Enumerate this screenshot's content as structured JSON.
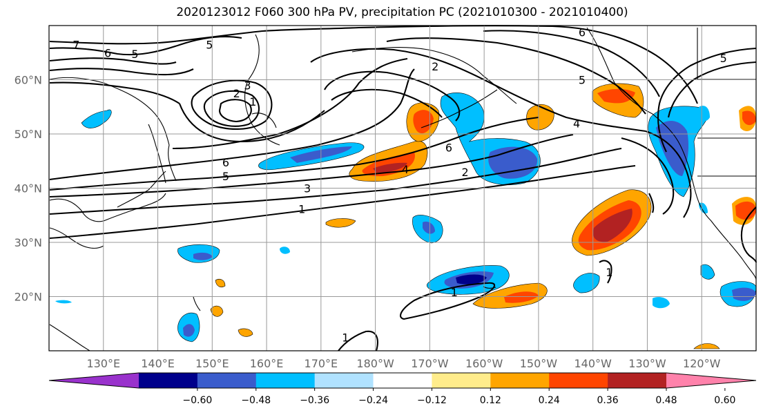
{
  "title": "2020123012 F060 300 hPa PV, precipitation PC (2021010300 - 2021010400)",
  "chart_data": {
    "type": "map",
    "projection": "cylindrical",
    "lon_range": [
      120,
      250
    ],
    "lat_range": [
      10,
      70
    ],
    "lat_ticks": [
      {
        "value": 20,
        "label": "20°N"
      },
      {
        "value": 30,
        "label": "30°N"
      },
      {
        "value": 40,
        "label": "40°N"
      },
      {
        "value": 50,
        "label": "50°N"
      },
      {
        "value": 60,
        "label": "60°N"
      }
    ],
    "lon_ticks": [
      {
        "value": 130,
        "label": "130°E"
      },
      {
        "value": 140,
        "label": "140°E"
      },
      {
        "value": 150,
        "label": "150°E"
      },
      {
        "value": 160,
        "label": "160°E"
      },
      {
        "value": 170,
        "label": "170°E"
      },
      {
        "value": 180,
        "label": "180°W"
      },
      {
        "value": 190,
        "label": "170°W"
      },
      {
        "value": 200,
        "label": "160°W"
      },
      {
        "value": 210,
        "label": "150°W"
      },
      {
        "value": 220,
        "label": "140°W"
      },
      {
        "value": 230,
        "label": "130°W"
      },
      {
        "value": 240,
        "label": "120°W"
      }
    ],
    "contour_labels": [
      {
        "text": "7",
        "lon": 125,
        "lat": 66.5
      },
      {
        "text": "6",
        "lon": 130.8,
        "lat": 65
      },
      {
        "text": "5",
        "lon": 135.8,
        "lat": 64.8
      },
      {
        "text": "5",
        "lon": 149.5,
        "lat": 66.5
      },
      {
        "text": "3",
        "lon": 156.5,
        "lat": 59
      },
      {
        "text": "2",
        "lon": 154.5,
        "lat": 57.5
      },
      {
        "text": "1",
        "lon": 157.5,
        "lat": 56
      },
      {
        "text": "6",
        "lon": 152.5,
        "lat": 44.8
      },
      {
        "text": "5",
        "lon": 152.5,
        "lat": 42.2
      },
      {
        "text": "3",
        "lon": 167.5,
        "lat": 40
      },
      {
        "text": "1",
        "lon": 166.5,
        "lat": 36.2
      },
      {
        "text": "4",
        "lon": 185.5,
        "lat": 43.5
      },
      {
        "text": "6",
        "lon": 193.5,
        "lat": 47.5
      },
      {
        "text": "2",
        "lon": 196.5,
        "lat": 43
      },
      {
        "text": "2",
        "lon": 191,
        "lat": 62.5
      },
      {
        "text": "6",
        "lon": 218,
        "lat": 68.8
      },
      {
        "text": "5",
        "lon": 218,
        "lat": 60
      },
      {
        "text": "4",
        "lon": 217,
        "lat": 52
      },
      {
        "text": "5",
        "lon": 244,
        "lat": 64
      },
      {
        "text": "1",
        "lon": 194.5,
        "lat": 20.8
      },
      {
        "text": "1",
        "lon": 223,
        "lat": 24.5
      },
      {
        "text": "1",
        "lon": 174.5,
        "lat": 12.5
      }
    ],
    "colorbar": {
      "ticks": [
        "−0.60",
        "−0.48",
        "−0.36",
        "−0.24",
        "−0.12",
        "0.12",
        "0.24",
        "0.36",
        "0.48",
        "0.60"
      ],
      "colors": [
        "#9932cc",
        "#00008b",
        "#3a5ccc",
        "#00bfff",
        "#b0e2ff",
        "#ffffff",
        "#ffec8b",
        "#ffa500",
        "#ff4500",
        "#b22222",
        "#ff82ab"
      ]
    }
  }
}
